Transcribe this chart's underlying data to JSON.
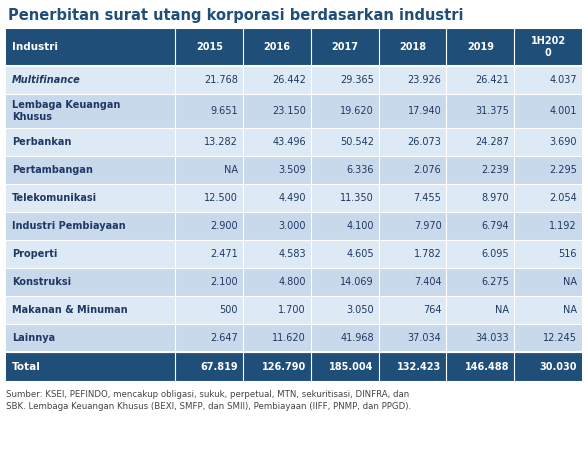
{
  "title": "Penerbitan surat utang korporasi berdasarkan industri",
  "columns": [
    "Industri",
    "2015",
    "2016",
    "2017",
    "2018",
    "2019",
    "1H202\n0"
  ],
  "rows": [
    [
      "Multifinance",
      "21.768",
      "26.442",
      "29.365",
      "23.926",
      "26.421",
      "4.037"
    ],
    [
      "Lembaga Keuangan\nKhusus",
      "9.651",
      "23.150",
      "19.620",
      "17.940",
      "31.375",
      "4.001"
    ],
    [
      "Perbankan",
      "13.282",
      "43.496",
      "50.542",
      "26.073",
      "24.287",
      "3.690"
    ],
    [
      "Pertambangan",
      "NA",
      "3.509",
      "6.336",
      "2.076",
      "2.239",
      "2.295"
    ],
    [
      "Telekomunikasi",
      "12.500",
      "4.490",
      "11.350",
      "7.455",
      "8.970",
      "2.054"
    ],
    [
      "Industri Pembiayaan",
      "2.900",
      "3.000",
      "4.100",
      "7.970",
      "6.794",
      "1.192"
    ],
    [
      "Properti",
      "2.471",
      "4.583",
      "4.605",
      "1.782",
      "6.095",
      "516"
    ],
    [
      "Konstruksi",
      "2.100",
      "4.800",
      "14.069",
      "7.404",
      "6.275",
      "NA"
    ],
    [
      "Makanan & Minuman",
      "500",
      "1.700",
      "3.050",
      "764",
      "NA",
      "NA"
    ],
    [
      "Lainnya",
      "2.647",
      "11.620",
      "41.968",
      "37.034",
      "34.033",
      "12.245"
    ]
  ],
  "total_row": [
    "Total",
    "67.819",
    "126.790",
    "185.004",
    "132.423",
    "146.488",
    "30.030"
  ],
  "footnote": "Sumber: KSEI, PEFINDO, mencakup obligasi, sukuk, perpetual, MTN, sekuritisasi, DINFRA, dan\nSBK. Lembaga Keuangan Khusus (BEXI, SMFP, dan SMII), Pembiayaan (IIFF, PNMP, dan PPGD).",
  "header_bg": "#1F4E79",
  "header_text": "#FFFFFF",
  "row_bg_odd": "#C9D9EC",
  "row_bg_even": "#DDEAF6",
  "total_bg": "#1F4E79",
  "total_text": "#FFFFFF",
  "title_color": "#1F4E79",
  "col_widths_ratio": [
    2.5,
    1.0,
    1.0,
    1.0,
    1.0,
    1.0,
    1.0
  ]
}
